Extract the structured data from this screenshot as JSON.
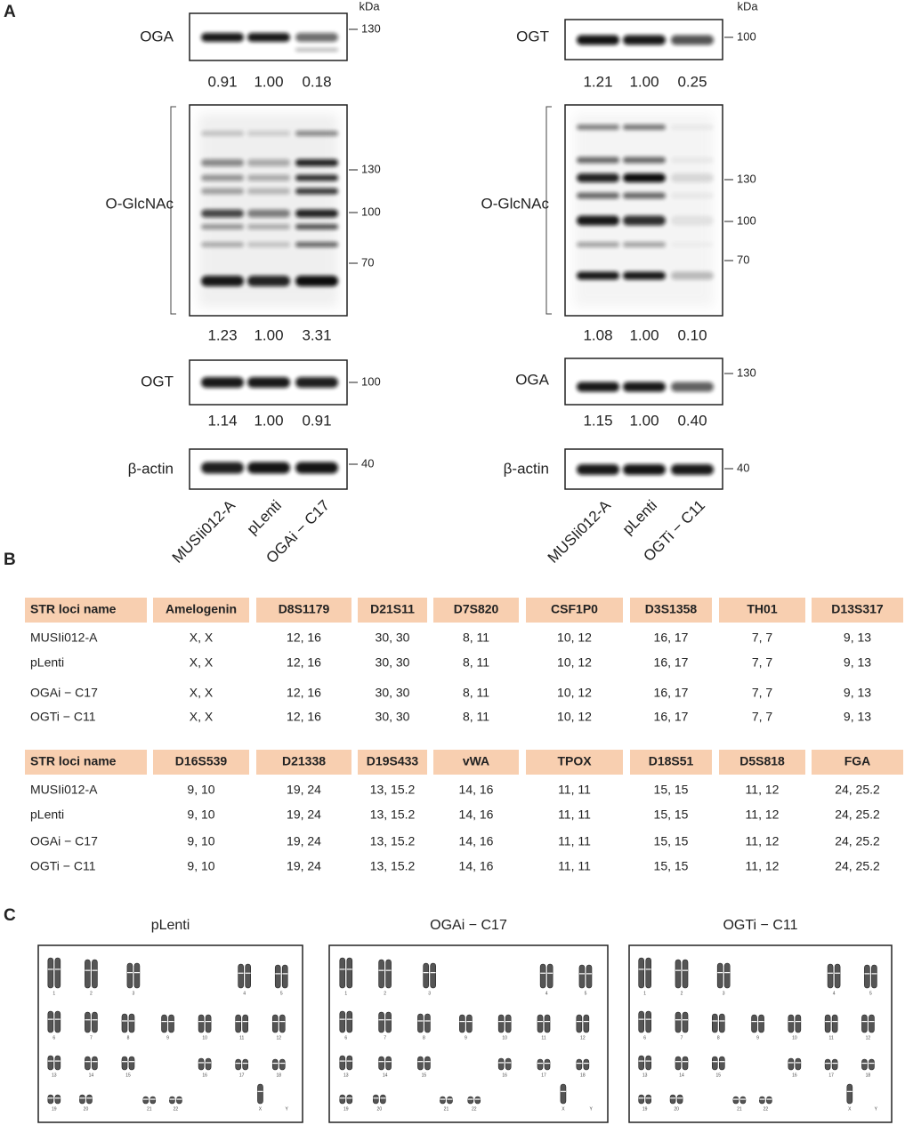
{
  "panel_a": {
    "label": "A",
    "blots": [
      {
        "kda": "kDa",
        "lanes": [
          "MUSIi012-A",
          "pLenti",
          "OGAi − C17"
        ],
        "rows": [
          {
            "name": "OGA",
            "markers": [
              "130"
            ],
            "quant": [
              "0.91",
              "1.00",
              "0.18"
            ]
          },
          {
            "name": "O-GlcNAc",
            "markers": [
              "130",
              "100",
              "70"
            ],
            "quant": [
              "1.23",
              "1.00",
              "3.31"
            ]
          },
          {
            "name": "OGT",
            "markers": [
              "100"
            ],
            "quant": [
              "1.14",
              "1.00",
              "0.91"
            ]
          },
          {
            "name": "β-actin",
            "markers": [
              "40"
            ]
          }
        ]
      },
      {
        "kda": "kDa",
        "lanes": [
          "MUSIi012-A",
          "pLenti",
          "OGTi − C11"
        ],
        "rows": [
          {
            "name": "OGT",
            "markers": [
              "100"
            ],
            "quant": [
              "1.21",
              "1.00",
              "0.25"
            ]
          },
          {
            "name": "O-GlcNAc",
            "markers": [
              "130",
              "100",
              "70"
            ],
            "quant": [
              "1.08",
              "1.00",
              "0.10"
            ]
          },
          {
            "name": "OGA",
            "markers": [
              "130"
            ],
            "quant": [
              "1.15",
              "1.00",
              "0.40"
            ]
          },
          {
            "name": "β-actin",
            "markers": [
              "40"
            ]
          }
        ]
      }
    ]
  },
  "panel_b": {
    "label": "B",
    "tables": [
      {
        "header": [
          "STR loci name",
          "Amelogenin",
          "D8S1179",
          "D21S11",
          "D7S820",
          "CSF1P0",
          "D3S1358",
          "TH01",
          "D13S317"
        ],
        "rows": [
          [
            "MUSIi012-A",
            "X, X",
            "12, 16",
            "30, 30",
            "8, 11",
            "10, 12",
            "16, 17",
            "7, 7",
            "9, 13"
          ],
          [
            "pLenti",
            "X, X",
            "12, 16",
            "30, 30",
            "8, 11",
            "10, 12",
            "16, 17",
            "7, 7",
            "9, 13"
          ],
          [
            "OGAi − C17",
            "X, X",
            "12, 16",
            "30, 30",
            "8, 11",
            "10, 12",
            "16, 17",
            "7, 7",
            "9, 13"
          ],
          [
            "OGTi − C11",
            "X, X",
            "12, 16",
            "30, 30",
            "8, 11",
            "10, 12",
            "16, 17",
            "7, 7",
            "9, 13"
          ]
        ]
      },
      {
        "header": [
          "STR loci name",
          "D16S539",
          "D21338",
          "D19S433",
          "vWA",
          "TPOX",
          "D18S51",
          "D5S818",
          "FGA"
        ],
        "rows": [
          [
            "MUSIi012-A",
            "9, 10",
            "19, 24",
            "13, 15.2",
            "14, 16",
            "11, 11",
            "15, 15",
            "11, 12",
            "24, 25.2"
          ],
          [
            "pLenti",
            "9, 10",
            "19, 24",
            "13, 15.2",
            "14, 16",
            "11, 11",
            "15, 15",
            "11, 12",
            "24, 25.2"
          ],
          [
            "OGAi − C17",
            "9, 10",
            "19, 24",
            "13, 15.2",
            "14, 16",
            "11, 11",
            "15, 15",
            "11, 12",
            "24, 25.2"
          ],
          [
            "OGTi − C11",
            "9, 10",
            "19, 24",
            "13, 15.2",
            "14, 16",
            "11, 11",
            "15, 15",
            "11, 12",
            "24, 25.2"
          ]
        ]
      }
    ]
  },
  "panel_c": {
    "label": "C",
    "titles": [
      "pLenti",
      "OGAi − C17",
      "OGTi − C11"
    ],
    "chromosome_labels": [
      "1",
      "2",
      "3",
      "4",
      "5",
      "6",
      "7",
      "8",
      "9",
      "10",
      "11",
      "12",
      "13",
      "14",
      "15",
      "16",
      "17",
      "18",
      "19",
      "20",
      "21",
      "22",
      "X",
      "Y"
    ]
  }
}
